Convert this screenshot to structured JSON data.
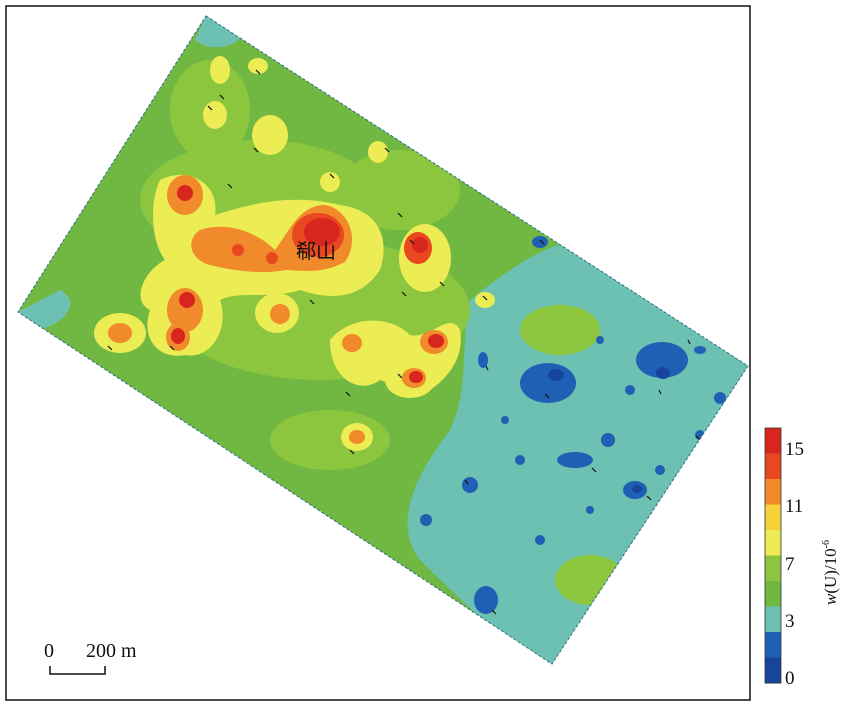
{
  "map": {
    "place_label": "郗山",
    "scale_bar": {
      "start_label": "0",
      "end_label": "200 m"
    },
    "legend": {
      "title_italic": "w",
      "title_rest": "(U)/10",
      "title_exponent": "-6",
      "ticks": [
        "15",
        "11",
        "7",
        "3",
        "0"
      ],
      "colors": [
        "#d7261e",
        "#e8471f",
        "#f08a2a",
        "#f5d23a",
        "#ecec54",
        "#8cc63f",
        "#71b843",
        "#6cc1b2",
        "#1f5fb4",
        "#17459b"
      ]
    }
  }
}
